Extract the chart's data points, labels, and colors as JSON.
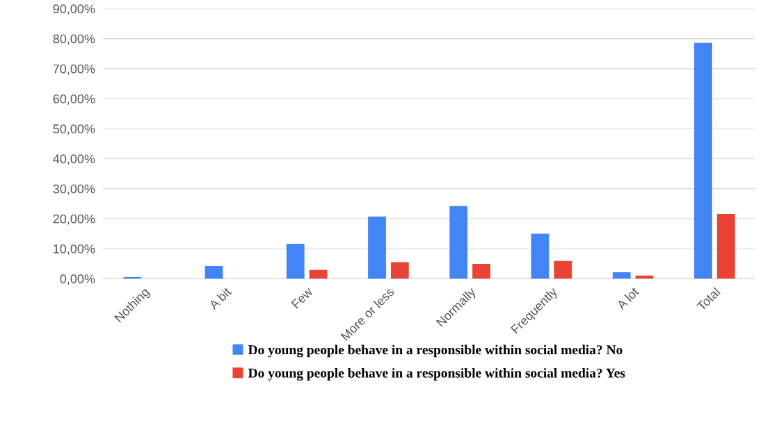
{
  "chart_data": {
    "type": "bar",
    "categories": [
      "Nothing",
      "A bit",
      "Few",
      "More or less",
      "Normally",
      "Frequently",
      "A lot",
      "Total"
    ],
    "series": [
      {
        "name": "Do young people behave in a responsible within social media? No",
        "color": "#4285f4",
        "values": [
          0.5,
          4.2,
          11.6,
          20.7,
          24.2,
          15.0,
          2.1,
          78.6
        ]
      },
      {
        "name": "Do young people behave in a responsible within social media? Yes",
        "color": "#ea4335",
        "values": [
          0,
          0,
          2.9,
          5.5,
          4.9,
          5.9,
          1.0,
          21.6
        ]
      }
    ],
    "ylim": [
      0,
      90
    ],
    "yticks": [
      {
        "value": 0,
        "label": "0,00%"
      },
      {
        "value": 10,
        "label": "10,00%"
      },
      {
        "value": 20,
        "label": "20,00%"
      },
      {
        "value": 30,
        "label": "30,00%"
      },
      {
        "value": 40,
        "label": "40,00%"
      },
      {
        "value": 50,
        "label": "50,00%"
      },
      {
        "value": 60,
        "label": "60,00%"
      },
      {
        "value": 70,
        "label": "70,00%"
      },
      {
        "value": 80,
        "label": "80,00%"
      },
      {
        "value": 90,
        "label": "90,00%"
      }
    ],
    "grid": "y",
    "legend": "bottom"
  }
}
